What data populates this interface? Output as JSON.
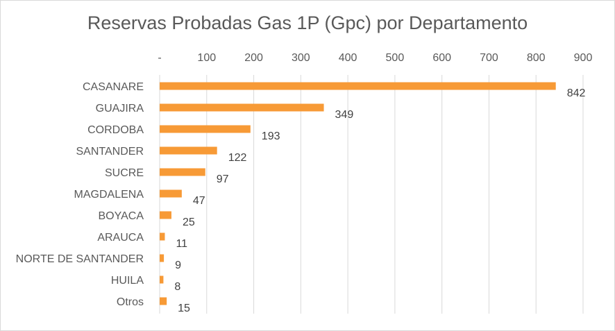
{
  "chart_data": {
    "type": "bar",
    "orientation": "horizontal",
    "title": "Reservas Probadas Gas 1P (Gpc) por Departamento",
    "xlabel": "",
    "ylabel": "",
    "xlim": [
      0,
      900
    ],
    "x_ticks": [
      0,
      100,
      200,
      300,
      400,
      500,
      600,
      700,
      800,
      900
    ],
    "x_tick_labels": [
      "-",
      "100",
      "200",
      "300",
      "400",
      "500",
      "600",
      "700",
      "800",
      "900"
    ],
    "x_axis_position": "top",
    "grid": true,
    "categories": [
      "CASANARE",
      "GUAJIRA",
      "CORDOBA",
      "SANTANDER",
      "SUCRE",
      "MAGDALENA",
      "BOYACA",
      "ARAUCA",
      "NORTE DE SANTANDER",
      "HUILA",
      "Otros"
    ],
    "values": [
      842,
      349,
      193,
      122,
      97,
      47,
      25,
      11,
      9,
      8,
      15
    ],
    "data_labels": [
      "842",
      "349",
      "193",
      "122",
      "97",
      "47",
      "25",
      "11",
      "9",
      "8",
      "15"
    ],
    "bar_color": "#F79A36",
    "gridline_color": "#d9d9d9"
  }
}
